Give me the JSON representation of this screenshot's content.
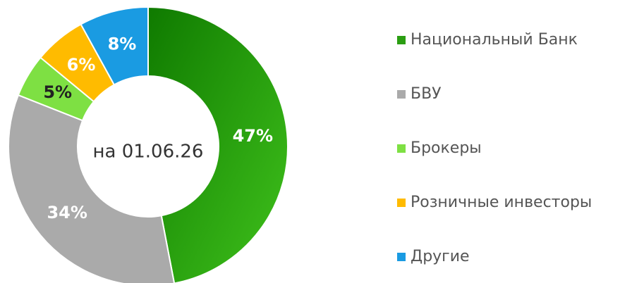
{
  "chart_data": {
    "type": "pie",
    "center_label": "на 01.06.26",
    "categories": [
      "Национальный Банк",
      "БВУ",
      "Брокеры",
      "Розничные инвесторы",
      "Другие"
    ],
    "values": [
      47,
      34,
      5,
      6,
      8
    ],
    "value_labels": [
      "47%",
      "34%",
      "5%",
      "6%",
      "8%"
    ],
    "colors": [
      "#2b9e12",
      "#aaaaaa",
      "#7ee043",
      "#ffbb00",
      "#1a9be2"
    ],
    "label_colors": [
      "#ffffff",
      "#ffffff",
      "#222222",
      "#ffffff",
      "#ffffff"
    ],
    "legend": "right"
  }
}
